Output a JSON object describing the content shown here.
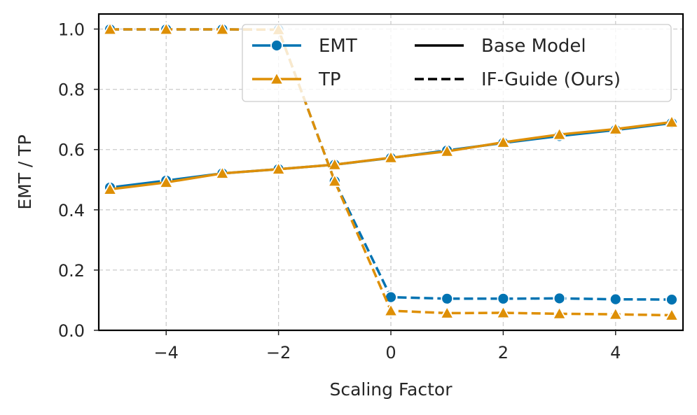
{
  "chart_data": {
    "type": "line",
    "title": "",
    "xlabel": "Scaling Factor",
    "ylabel": "EMT / TP",
    "xlim": [
      -5.2,
      5.2
    ],
    "ylim": [
      0.0,
      1.05
    ],
    "x": [
      -5,
      -4,
      -3,
      -2,
      -1,
      0,
      1,
      2,
      3,
      4,
      5
    ],
    "xticks": [
      -4,
      -2,
      0,
      2,
      4
    ],
    "xtick_labels": [
      "−4",
      "−2",
      "0",
      "2",
      "4"
    ],
    "yticks": [
      0.0,
      0.2,
      0.4,
      0.6,
      0.8,
      1.0
    ],
    "ytick_labels": [
      "0.0",
      "0.2",
      "0.4",
      "0.6",
      "0.8",
      "1.0"
    ],
    "grid": true,
    "series": [
      {
        "name": "EMT",
        "model": "Base Model",
        "color": "#0173b2",
        "marker": "circle",
        "linestyle": "solid",
        "values": [
          0.474,
          0.497,
          0.521,
          0.535,
          0.55,
          0.572,
          0.597,
          0.622,
          0.645,
          0.665,
          0.688
        ]
      },
      {
        "name": "TP",
        "model": "Base Model",
        "color": "#de8f05",
        "marker": "triangle",
        "linestyle": "solid",
        "values": [
          0.468,
          0.491,
          0.521,
          0.535,
          0.55,
          0.573,
          0.594,
          0.624,
          0.65,
          0.668,
          0.691
        ]
      },
      {
        "name": "EMT",
        "model": "IF-Guide (Ours)",
        "color": "#0173b2",
        "marker": "circle",
        "linestyle": "dashed",
        "values": [
          0.999,
          0.999,
          0.999,
          0.998,
          0.495,
          0.11,
          0.105,
          0.105,
          0.106,
          0.103,
          0.102
        ]
      },
      {
        "name": "TP",
        "model": "IF-Guide (Ours)",
        "color": "#de8f05",
        "marker": "triangle",
        "linestyle": "dashed",
        "values": [
          0.999,
          0.999,
          0.999,
          0.998,
          0.495,
          0.065,
          0.057,
          0.058,
          0.055,
          0.053,
          0.05
        ]
      }
    ],
    "legend": {
      "placement": "top-right",
      "entries": [
        {
          "label": "EMT",
          "kind": "series",
          "color": "#0173b2",
          "marker": "circle"
        },
        {
          "label": "TP",
          "kind": "series",
          "color": "#de8f05",
          "marker": "triangle"
        },
        {
          "label": "Base Model",
          "kind": "style",
          "linestyle": "solid"
        },
        {
          "label": "IF-Guide (Ours)",
          "kind": "style",
          "linestyle": "dashed"
        }
      ]
    }
  }
}
